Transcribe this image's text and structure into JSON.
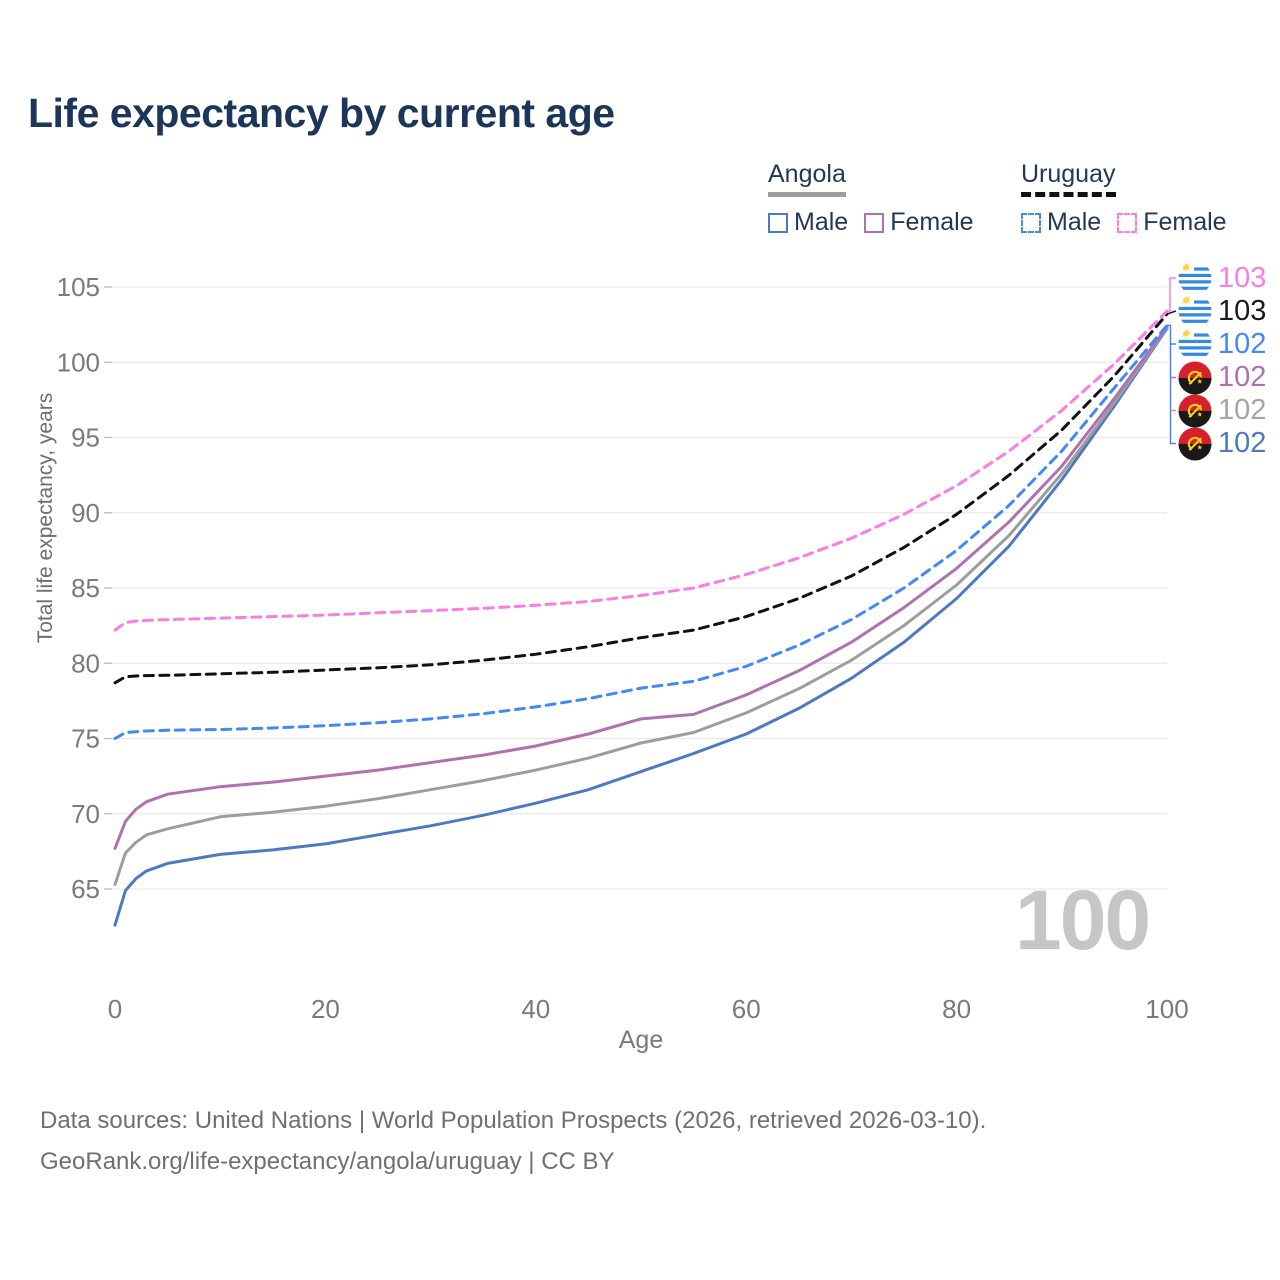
{
  "title": "Life expectancy by current age",
  "legend": {
    "groups": [
      {
        "country": "Angola",
        "line_style": "solid",
        "underline_color": "#9d9d9d",
        "items": [
          {
            "label": "Male",
            "color": "#4e79c0"
          },
          {
            "label": "Female",
            "color": "#af72b0"
          }
        ]
      },
      {
        "country": "Uruguay",
        "line_style": "dashed",
        "underline_color": "#111111",
        "items": [
          {
            "label": "Male",
            "color": "#4289f5"
          },
          {
            "label": "Female",
            "color": "#fa7de4"
          }
        ]
      }
    ]
  },
  "watermark": "100",
  "footer": {
    "line1": "Data sources: United Nations | World Population Prospects (2026, retrieved 2026-03-10).",
    "line2": "GeoRank.org/life-expectancy/angola/uruguay | CC BY"
  },
  "chart_data": {
    "type": "line",
    "title": "Life expectancy by current age",
    "xlabel": "Age",
    "ylabel": "Total life expectancy, years",
    "xlim": [
      0,
      100
    ],
    "ylim": [
      62,
      106
    ],
    "xticks": [
      0,
      20,
      40,
      60,
      80,
      100
    ],
    "yticks": [
      65,
      70,
      75,
      80,
      85,
      90,
      95,
      100,
      105
    ],
    "grid": "horizontal-only",
    "legend_position": "top-right",
    "x": [
      0,
      1,
      2,
      3,
      5,
      10,
      15,
      20,
      25,
      30,
      35,
      40,
      45,
      50,
      55,
      60,
      65,
      70,
      75,
      80,
      85,
      90,
      95,
      100
    ],
    "series": [
      {
        "name": "Angola Male",
        "country": "Angola",
        "sex": "male",
        "color": "#4e79c0",
        "dash": false,
        "values": [
          62.6,
          64.9,
          65.7,
          66.2,
          66.7,
          67.3,
          67.6,
          68.0,
          68.6,
          69.2,
          69.9,
          70.7,
          71.6,
          72.8,
          74.0,
          75.3,
          77.0,
          79.0,
          81.4,
          84.3,
          87.8,
          92.2,
          97.1,
          102.25
        ]
      },
      {
        "name": "Angola",
        "country": "Angola",
        "sex": "both",
        "color": "#9d9d9d",
        "dash": false,
        "values": [
          65.3,
          67.4,
          68.1,
          68.6,
          69.0,
          69.8,
          70.1,
          70.5,
          71.0,
          71.6,
          72.2,
          72.9,
          73.7,
          74.7,
          75.4,
          76.7,
          78.3,
          80.2,
          82.5,
          85.2,
          88.5,
          92.6,
          97.3,
          102.3
        ]
      },
      {
        "name": "Angola Female",
        "country": "Angola",
        "sex": "female",
        "color": "#af72b0",
        "dash": false,
        "values": [
          67.7,
          69.5,
          70.3,
          70.8,
          71.3,
          71.8,
          72.1,
          72.5,
          72.9,
          73.4,
          73.9,
          74.5,
          75.3,
          76.3,
          76.6,
          77.9,
          79.5,
          81.4,
          83.7,
          86.3,
          89.4,
          93.1,
          97.6,
          102.35
        ]
      },
      {
        "name": "Uruguay Male",
        "country": "Uruguay",
        "sex": "male",
        "color": "#4289f5",
        "dash": true,
        "values": [
          75.0,
          75.4,
          75.45,
          75.5,
          75.55,
          75.6,
          75.7,
          75.85,
          76.05,
          76.3,
          76.65,
          77.1,
          77.65,
          78.35,
          78.8,
          79.8,
          81.2,
          82.9,
          85.0,
          87.5,
          90.5,
          94.1,
          98.3,
          102.45
        ]
      },
      {
        "name": "Uruguay",
        "country": "Uruguay",
        "sex": "both",
        "color": "#111111",
        "dash": true,
        "values": [
          78.7,
          79.1,
          79.15,
          79.18,
          79.2,
          79.3,
          79.4,
          79.55,
          79.7,
          79.9,
          80.2,
          80.6,
          81.1,
          81.7,
          82.2,
          83.1,
          84.3,
          85.8,
          87.7,
          89.9,
          92.5,
          95.5,
          99.1,
          103.2
        ]
      },
      {
        "name": "Uruguay Female",
        "country": "Uruguay",
        "sex": "female",
        "color": "#fa7de4",
        "dash": true,
        "values": [
          82.2,
          82.7,
          82.8,
          82.85,
          82.9,
          83.0,
          83.1,
          83.2,
          83.35,
          83.5,
          83.65,
          83.85,
          84.1,
          84.5,
          85.0,
          85.9,
          87.0,
          88.3,
          89.9,
          91.8,
          94.1,
          96.8,
          99.9,
          103.4
        ]
      }
    ],
    "end_labels": [
      {
        "flag": "uruguay",
        "series": "Uruguay Female",
        "value": "103",
        "color": "#fa7de4"
      },
      {
        "flag": "uruguay",
        "series": "Uruguay",
        "value": "103",
        "color": "#1a1a1a"
      },
      {
        "flag": "uruguay",
        "series": "Uruguay Male",
        "value": "102",
        "color": "#4289f5"
      },
      {
        "flag": "angola",
        "series": "Angola Female",
        "value": "102",
        "color": "#af72b0"
      },
      {
        "flag": "angola",
        "series": "Angola",
        "value": "102",
        "color": "#a6a6a6"
      },
      {
        "flag": "angola",
        "series": "Angola Male",
        "value": "102",
        "color": "#4e79c0"
      }
    ]
  }
}
